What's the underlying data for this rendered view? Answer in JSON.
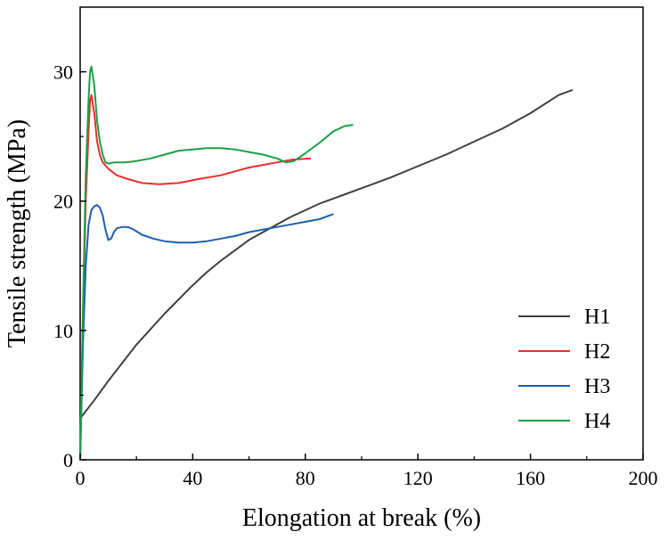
{
  "chart_data": {
    "type": "line",
    "title": "",
    "xlabel": "Elongation at break (%)",
    "ylabel": "Tensile strength (MPa)",
    "xlim": [
      0,
      200
    ],
    "ylim": [
      0,
      35
    ],
    "xticks": [
      0,
      40,
      80,
      120,
      160,
      200
    ],
    "yticks": [
      0,
      10,
      20,
      30
    ],
    "xtick_labels": [
      "0",
      "40",
      "80",
      "120",
      "160",
      "200"
    ],
    "ytick_labels": [
      "0",
      "10",
      "20",
      "30"
    ],
    "grid": false,
    "legend_position": "bottom-right",
    "series": [
      {
        "name": "H1",
        "color": "#404040",
        "points": [
          [
            0,
            3.2
          ],
          [
            5,
            4.6
          ],
          [
            10,
            6.1
          ],
          [
            15,
            7.5
          ],
          [
            20,
            8.9
          ],
          [
            25,
            10.1
          ],
          [
            30,
            11.3
          ],
          [
            35,
            12.4
          ],
          [
            40,
            13.5
          ],
          [
            45,
            14.5
          ],
          [
            50,
            15.4
          ],
          [
            55,
            16.2
          ],
          [
            60,
            17.0
          ],
          [
            65,
            17.6
          ],
          [
            70,
            18.2
          ],
          [
            75,
            18.8
          ],
          [
            80,
            19.3
          ],
          [
            85,
            19.8
          ],
          [
            90,
            20.2
          ],
          [
            95,
            20.6
          ],
          [
            100,
            21.0
          ],
          [
            110,
            21.8
          ],
          [
            120,
            22.7
          ],
          [
            130,
            23.6
          ],
          [
            140,
            24.6
          ],
          [
            150,
            25.6
          ],
          [
            160,
            26.8
          ],
          [
            170,
            28.2
          ],
          [
            175,
            28.6
          ]
        ]
      },
      {
        "name": "H2",
        "color": "#e8302a",
        "points": [
          [
            0,
            0
          ],
          [
            1,
            11
          ],
          [
            2,
            20
          ],
          [
            3,
            25.5
          ],
          [
            3.5,
            27.8
          ],
          [
            4,
            28.2
          ],
          [
            5,
            26.8
          ],
          [
            6,
            24.6
          ],
          [
            7,
            23.6
          ],
          [
            8,
            23.0
          ],
          [
            10,
            22.5
          ],
          [
            13,
            22.0
          ],
          [
            17,
            21.7
          ],
          [
            22,
            21.4
          ],
          [
            28,
            21.3
          ],
          [
            35,
            21.4
          ],
          [
            42,
            21.7
          ],
          [
            50,
            22.0
          ],
          [
            55,
            22.3
          ],
          [
            60,
            22.6
          ],
          [
            65,
            22.8
          ],
          [
            70,
            23.0
          ],
          [
            75,
            23.2
          ],
          [
            82,
            23.3
          ]
        ]
      },
      {
        "name": "H3",
        "color": "#1f5fb0",
        "points": [
          [
            0,
            0
          ],
          [
            1,
            9
          ],
          [
            2,
            15
          ],
          [
            3,
            18.2
          ],
          [
            4,
            19.3
          ],
          [
            5,
            19.6
          ],
          [
            6,
            19.7
          ],
          [
            7,
            19.5
          ],
          [
            8,
            18.9
          ],
          [
            9,
            17.8
          ],
          [
            10,
            17.0
          ],
          [
            11,
            17.1
          ],
          [
            12,
            17.6
          ],
          [
            13,
            17.9
          ],
          [
            15,
            18.0
          ],
          [
            17,
            18.0
          ],
          [
            19,
            17.8
          ],
          [
            22,
            17.4
          ],
          [
            26,
            17.1
          ],
          [
            30,
            16.9
          ],
          [
            35,
            16.8
          ],
          [
            40,
            16.8
          ],
          [
            45,
            16.9
          ],
          [
            50,
            17.1
          ],
          [
            55,
            17.3
          ],
          [
            60,
            17.6
          ],
          [
            65,
            17.8
          ],
          [
            70,
            18.0
          ],
          [
            75,
            18.2
          ],
          [
            80,
            18.4
          ],
          [
            85,
            18.6
          ],
          [
            90,
            19.0
          ]
        ]
      },
      {
        "name": "H4",
        "color": "#1aa048",
        "points": [
          [
            0,
            0
          ],
          [
            1,
            12
          ],
          [
            2,
            22
          ],
          [
            3,
            28
          ],
          [
            3.5,
            30
          ],
          [
            4,
            30.4
          ],
          [
            5,
            29
          ],
          [
            6,
            26.2
          ],
          [
            7,
            24.6
          ],
          [
            8,
            23.6
          ],
          [
            9,
            23.0
          ],
          [
            10,
            22.9
          ],
          [
            12,
            23.0
          ],
          [
            16,
            23.0
          ],
          [
            20,
            23.1
          ],
          [
            25,
            23.3
          ],
          [
            30,
            23.6
          ],
          [
            35,
            23.9
          ],
          [
            40,
            24.0
          ],
          [
            45,
            24.1
          ],
          [
            50,
            24.1
          ],
          [
            55,
            24.0
          ],
          [
            60,
            23.8
          ],
          [
            65,
            23.6
          ],
          [
            70,
            23.3
          ],
          [
            73,
            23.0
          ],
          [
            76,
            23.1
          ],
          [
            80,
            23.7
          ],
          [
            85,
            24.5
          ],
          [
            90,
            25.4
          ],
          [
            94,
            25.8
          ],
          [
            97,
            25.9
          ]
        ]
      }
    ]
  }
}
